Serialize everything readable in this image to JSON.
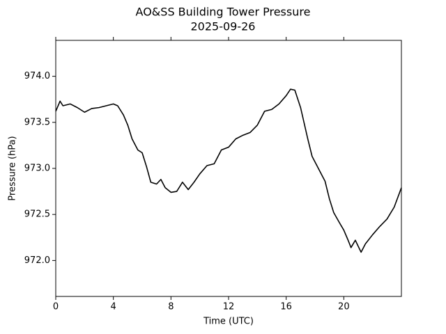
{
  "chart_data": {
    "type": "line",
    "title": "AO&SS Building Tower Pressure",
    "subtitle": "2025-09-26",
    "x_label": "Time (UTC)",
    "y_label": "Pressure (hPa)",
    "color": "#000000",
    "grid": false,
    "xlim": [
      0,
      24
    ],
    "xticks": [
      0,
      4,
      8,
      12,
      16,
      20
    ],
    "ylim": [
      971.61,
      974.39
    ],
    "yticks": [
      {
        "value": 972,
        "label": "972.0"
      },
      972.5,
      {
        "value": 973,
        "label": "973.0"
      },
      973.5,
      {
        "value": 974,
        "label": "974.0"
      }
    ],
    "x": [
      0,
      0.3,
      0.5,
      1.0,
      1.5,
      2.0,
      2.5,
      3.0,
      3.5,
      4.0,
      4.3,
      4.7,
      5.0,
      5.3,
      5.7,
      6.0,
      6.3,
      6.6,
      7.0,
      7.3,
      7.6,
      8.0,
      8.4,
      8.8,
      9.2,
      9.6,
      10.0,
      10.5,
      11.0,
      11.5,
      12.0,
      12.5,
      13.0,
      13.5,
      14.0,
      14.5,
      15.0,
      15.5,
      16.0,
      16.3,
      16.6,
      17.0,
      17.5,
      17.8,
      18.3,
      18.7,
      19.0,
      19.3,
      19.7,
      20.0,
      20.3,
      20.5,
      20.8,
      21.2,
      21.5,
      22.0,
      22.5,
      23.0,
      23.5,
      24.0
    ],
    "values": [
      973.62,
      973.73,
      973.68,
      973.7,
      973.66,
      973.61,
      973.65,
      973.66,
      973.68,
      973.7,
      973.68,
      973.58,
      973.47,
      973.32,
      973.2,
      973.17,
      973.02,
      972.85,
      972.83,
      972.88,
      972.79,
      972.74,
      972.75,
      972.85,
      972.77,
      972.85,
      972.94,
      973.03,
      973.05,
      973.2,
      973.23,
      973.32,
      973.36,
      973.39,
      973.47,
      973.62,
      973.64,
      973.7,
      973.79,
      973.86,
      973.85,
      973.66,
      973.32,
      973.13,
      972.98,
      972.86,
      972.67,
      972.52,
      972.41,
      972.33,
      972.22,
      972.14,
      972.22,
      972.09,
      972.18,
      972.28,
      972.37,
      972.45,
      972.58,
      972.79
    ]
  }
}
